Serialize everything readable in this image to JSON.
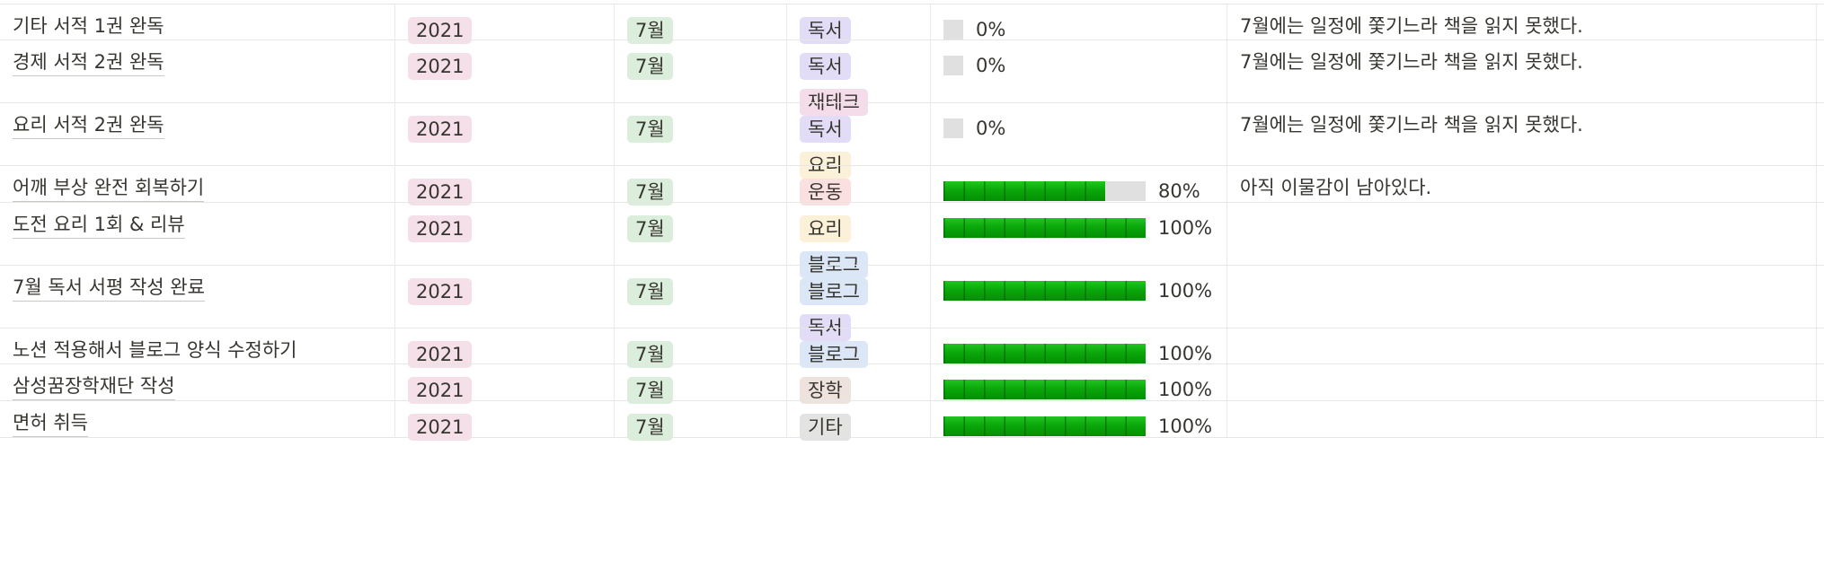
{
  "colors": {
    "year_pill": "#f5e0ea",
    "month_pill": "#dbeddb",
    "progress_fill": "#0aa80a",
    "progress_track": "#e0e0e0",
    "tag_독서": "#e3dcf7",
    "tag_재테크": "#f5dceb",
    "tag_요리": "#fbf0d8",
    "tag_운동": "#fbe0e0",
    "tag_블로그": "#dbe6f6",
    "tag_장학": "#eee2dc",
    "tag_기타": "#e3e3e2"
  },
  "rows": [
    {
      "name": "기타 서적 1권 완독",
      "year": "2021",
      "month": "7월",
      "tags": [
        "독서"
      ],
      "progress": 0,
      "progress_label": "0%",
      "memo": "7월에는 일정에 쫓기느라 책을 읽지 못했다."
    },
    {
      "name": "경제 서적 2권 완독",
      "year": "2021",
      "month": "7월",
      "tags": [
        "독서",
        "재테크"
      ],
      "progress": 0,
      "progress_label": "0%",
      "memo": "7월에는 일정에 쫓기느라 책을 읽지 못했다."
    },
    {
      "name": "요리 서적 2권 완독",
      "year": "2021",
      "month": "7월",
      "tags": [
        "독서",
        "요리"
      ],
      "progress": 0,
      "progress_label": "0%",
      "memo": "7월에는 일정에 쫓기느라 책을 읽지 못했다."
    },
    {
      "name": "어깨 부상 완전 회복하기",
      "year": "2021",
      "month": "7월",
      "tags": [
        "운동"
      ],
      "progress": 80,
      "progress_label": "80%",
      "memo": "아직 이물감이 남아있다."
    },
    {
      "name": "도전 요리 1회 & 리뷰",
      "year": "2021",
      "month": "7월",
      "tags": [
        "요리",
        "블로그"
      ],
      "progress": 100,
      "progress_label": "100%",
      "memo": ""
    },
    {
      "name": "7월 독서 서평 작성 완료",
      "year": "2021",
      "month": "7월",
      "tags": [
        "블로그",
        "독서"
      ],
      "progress": 100,
      "progress_label": "100%",
      "memo": ""
    },
    {
      "name": "노션 적용해서 블로그 양식 수정하기",
      "year": "2021",
      "month": "7월",
      "tags": [
        "블로그"
      ],
      "progress": 100,
      "progress_label": "100%",
      "memo": ""
    },
    {
      "name": "삼성꿈장학재단 작성",
      "year": "2021",
      "month": "7월",
      "tags": [
        "장학"
      ],
      "progress": 100,
      "progress_label": "100%",
      "memo": ""
    },
    {
      "name": "면허 취득",
      "year": "2021",
      "month": "7월",
      "tags": [
        "기타"
      ],
      "progress": 100,
      "progress_label": "100%",
      "memo": ""
    }
  ]
}
